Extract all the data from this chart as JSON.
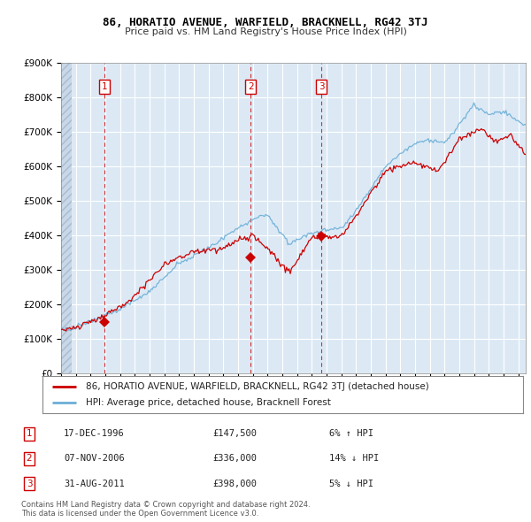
{
  "title": "86, HORATIO AVENUE, WARFIELD, BRACKNELL, RG42 3TJ",
  "subtitle": "Price paid vs. HM Land Registry's House Price Index (HPI)",
  "ylim": [
    0,
    900000
  ],
  "xlim_start": 1994.0,
  "xlim_end": 2025.5,
  "yticks": [
    0,
    100000,
    200000,
    300000,
    400000,
    500000,
    600000,
    700000,
    800000,
    900000
  ],
  "ytick_labels": [
    "£0",
    "£100K",
    "£200K",
    "£300K",
    "£400K",
    "£500K",
    "£600K",
    "£700K",
    "£800K",
    "£900K"
  ],
  "xticks": [
    1994,
    1995,
    1996,
    1997,
    1998,
    1999,
    2000,
    2001,
    2002,
    2003,
    2004,
    2005,
    2006,
    2007,
    2008,
    2009,
    2010,
    2011,
    2012,
    2013,
    2014,
    2015,
    2016,
    2017,
    2018,
    2019,
    2020,
    2021,
    2022,
    2023,
    2024,
    2025
  ],
  "sale_dates": [
    1996.96,
    2006.85,
    2011.66
  ],
  "sale_prices": [
    147500,
    336000,
    398000
  ],
  "legend_red": "86, HORATIO AVENUE, WARFIELD, BRACKNELL, RG42 3TJ (detached house)",
  "legend_blue": "HPI: Average price, detached house, Bracknell Forest",
  "table_rows": [
    {
      "num": "1",
      "date": "17-DEC-1996",
      "price": "£147,500",
      "hpi": "6% ↑ HPI"
    },
    {
      "num": "2",
      "date": "07-NOV-2006",
      "price": "£336,000",
      "hpi": "14% ↓ HPI"
    },
    {
      "num": "3",
      "date": "31-AUG-2011",
      "price": "£398,000",
      "hpi": "5% ↓ HPI"
    }
  ],
  "footer": "Contains HM Land Registry data © Crown copyright and database right 2024.\nThis data is licensed under the Open Government Licence v3.0.",
  "hpi_color": "#6baed6",
  "sale_color": "#cc0000",
  "plot_bg_color": "#dce9f5",
  "grid_color": "#ffffff",
  "hatch_area_color": "#c8d8e8"
}
